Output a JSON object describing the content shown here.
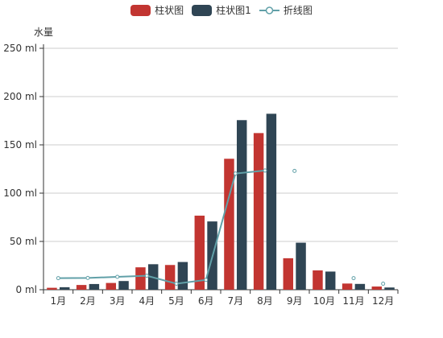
{
  "chart_data": {
    "type": "bar",
    "ylabel": "水量",
    "categories": [
      "1月",
      "2月",
      "3月",
      "4月",
      "5月",
      "6月",
      "7月",
      "8月",
      "9月",
      "10月",
      "11月",
      "12月"
    ],
    "ylim": [
      0,
      250
    ],
    "y_ticks": [
      "0 ml",
      "50 ml",
      "100 ml",
      "150 ml",
      "200 ml",
      "250 ml"
    ],
    "grid": true,
    "legend_position": "top-center",
    "series": [
      {
        "name": "柱状图",
        "type": "bar",
        "color": "#c23531",
        "values": [
          2.0,
          4.9,
          7.0,
          23.2,
          25.6,
          76.7,
          135.6,
          162.2,
          32.6,
          20.0,
          6.4,
          3.3
        ]
      },
      {
        "name": "柱状图1",
        "type": "bar",
        "color": "#2f4554",
        "values": [
          2.6,
          5.9,
          9.0,
          26.4,
          28.7,
          70.7,
          175.6,
          182.2,
          48.7,
          18.8,
          6.0,
          2.3
        ]
      },
      {
        "name": "折线图",
        "type": "line",
        "color": "#61a0a8",
        "values": [
          12.0,
          12.2,
          13.3,
          14.5,
          6.3,
          10.2,
          120.3,
          123.4,
          123.0,
          null,
          12.0,
          6.2
        ],
        "connected_through_index": 7
      }
    ]
  }
}
